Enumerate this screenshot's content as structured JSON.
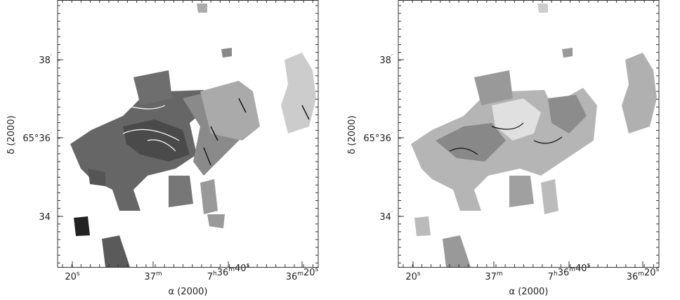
{
  "panels": [
    {
      "x_label": "α (2000)",
      "y_label": "δ (2000)",
      "x_ticks": [
        [
          {
            "text": "20",
            "sup": "s"
          }
        ],
        [
          {
            "text": "37",
            "sup": "m"
          }
        ],
        [
          {
            "text": "7",
            "sup": "h"
          },
          {
            "text": "36",
            "sup": "m"
          },
          {
            "text": "40",
            "sup": "s"
          }
        ],
        [
          {
            "text": "36",
            "sup": "m"
          },
          {
            "text": "20",
            "sup": "s"
          }
        ]
      ],
      "y_ticks": [
        [
          {
            "text": "38",
            "sup": "′"
          }
        ],
        [
          {
            "text": "65°36",
            "sup": "′"
          }
        ],
        [
          {
            "text": "34",
            "sup": "′"
          }
        ]
      ]
    },
    {
      "x_label": "α (2000)",
      "y_label": "δ (2000)",
      "x_ticks": [
        [
          {
            "text": "20",
            "sup": "s"
          }
        ],
        [
          {
            "text": "37",
            "sup": "m"
          }
        ],
        [
          {
            "text": "7",
            "sup": "h"
          },
          {
            "text": "36",
            "sup": "m"
          },
          {
            "text": "40",
            "sup": "s"
          }
        ],
        [
          {
            "text": "36",
            "sup": "m"
          },
          {
            "text": "20",
            "sup": "s"
          }
        ]
      ],
      "y_ticks": [
        [
          {
            "text": "38",
            "sup": "′"
          }
        ],
        [
          {
            "text": "65°36",
            "sup": "′"
          }
        ],
        [
          {
            "text": "34",
            "sup": "′"
          }
        ]
      ]
    }
  ]
}
